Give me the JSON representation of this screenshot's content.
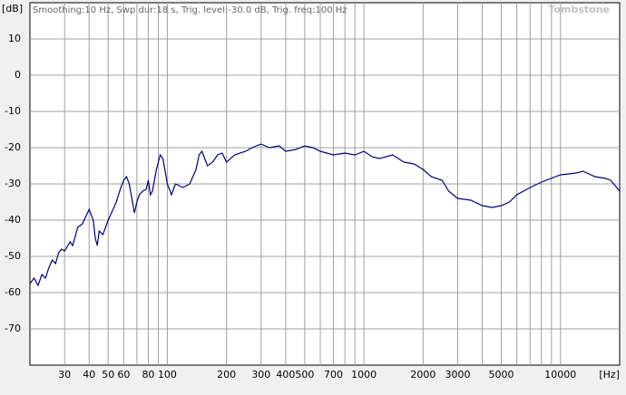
{
  "chart_data": {
    "type": "line",
    "header": "Smoothing:10 Hz, Swp dur:18 s, Trig. level:-30.0 dB, Trig. freq:100 Hz",
    "watermark": "Tombstone",
    "y_label": "[dB]",
    "x_label": "[Hz]",
    "xscale": "log",
    "grid": true,
    "xlim": [
      20,
      20000
    ],
    "ylim": [
      -80,
      20
    ],
    "xticks": [
      30,
      40,
      50,
      60,
      80,
      100,
      200,
      300,
      400,
      500,
      700,
      1000,
      2000,
      3000,
      5000,
      10000
    ],
    "xgrid": [
      30,
      40,
      50,
      60,
      70,
      80,
      90,
      100,
      200,
      300,
      400,
      500,
      600,
      700,
      800,
      900,
      1000,
      2000,
      3000,
      4000,
      5000,
      6000,
      7000,
      8000,
      9000,
      10000
    ],
    "yticks": [
      10,
      0,
      -10,
      -20,
      -30,
      -40,
      -50,
      -60,
      -70
    ],
    "x": [
      20,
      21,
      22,
      23,
      24,
      25,
      26,
      27,
      28,
      29,
      30,
      32,
      33,
      35,
      37,
      40,
      42,
      43,
      44,
      45,
      47,
      50,
      53,
      55,
      58,
      60,
      62,
      64,
      66,
      68,
      70,
      72,
      75,
      78,
      80,
      82,
      84,
      88,
      92,
      95,
      100,
      105,
      110,
      120,
      130,
      140,
      145,
      150,
      160,
      170,
      180,
      190,
      200,
      220,
      250,
      270,
      300,
      330,
      370,
      400,
      450,
      500,
      550,
      600,
      700,
      800,
      900,
      1000,
      1100,
      1200,
      1400,
      1600,
      1800,
      2000,
      2200,
      2500,
      2700,
      3000,
      3500,
      4000,
      4500,
      5000,
      5500,
      6000,
      7000,
      8000,
      10000,
      12000,
      13000,
      15000,
      17000,
      18000,
      20000
    ],
    "series": [
      {
        "color": "#000080",
        "values": [
          -57.5,
          -56,
          -58,
          -55,
          -56,
          -53,
          -51,
          -52,
          -49,
          -48,
          -48.5,
          -46,
          -47,
          -42,
          -41,
          -37,
          -40,
          -45,
          -47,
          -43,
          -44,
          -40,
          -37,
          -35,
          -31,
          -29,
          -28,
          -30,
          -34,
          -38,
          -35,
          -33,
          -32,
          -31.5,
          -29,
          -33,
          -32,
          -26,
          -22,
          -23,
          -30,
          -33,
          -30,
          -31,
          -30,
          -26,
          -22,
          -21,
          -25,
          -24,
          -22,
          -21.5,
          -24,
          -22,
          -21,
          -20,
          -19,
          -20,
          -19.5,
          -21,
          -20.5,
          -19.5,
          -20,
          -21,
          -22,
          -21.5,
          -22,
          -21,
          -22.5,
          -23,
          -22,
          -24,
          -24.5,
          -26,
          -28,
          -29,
          -32,
          -34,
          -34.5,
          -36,
          -36.5,
          -36,
          -35,
          -33,
          -31,
          -29.5,
          -27.5,
          -27,
          -26.5,
          -28,
          -28.5,
          -29,
          -32
        ]
      }
    ]
  }
}
